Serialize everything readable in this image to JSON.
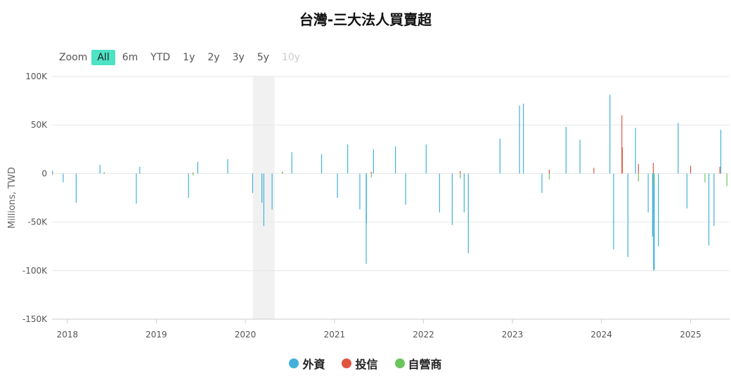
{
  "chart_data": {
    "type": "bar",
    "title": "台灣-三大法人買賣超",
    "ylabel": "Millions, TWD",
    "xlabel": "",
    "ylim": [
      -150000,
      100000
    ],
    "yticks": [
      100000,
      50000,
      0,
      -50000,
      -100000,
      -150000
    ],
    "ytick_labels": [
      "100K",
      "50K",
      "0",
      "-50K",
      "-100K",
      "-150K"
    ],
    "x_range": [
      "2017-10-30",
      "2025-06-10"
    ],
    "xtick_labels": [
      "2018",
      "2019",
      "2020",
      "2021",
      "2022",
      "2023",
      "2024",
      "2025"
    ],
    "xtick_dates": [
      "2018-01-01",
      "2019-01-01",
      "2020-01-01",
      "2021-01-01",
      "2022-01-01",
      "2023-01-01",
      "2024-01-01",
      "2025-01-01"
    ],
    "grid": true,
    "legend_position": "bottom-center",
    "highlight_band": [
      "2020-02-01",
      "2020-04-30"
    ],
    "series": [
      {
        "name": "外資",
        "color": "#42b0da",
        "values": [
          [
            "2017-11-01",
            3000
          ],
          [
            "2017-12-15",
            -9000
          ],
          [
            "2018-02-06",
            -30000
          ],
          [
            "2018-05-15",
            9000
          ],
          [
            "2018-10-11",
            -31000
          ],
          [
            "2018-10-25",
            7000
          ],
          [
            "2019-05-13",
            -25000
          ],
          [
            "2019-06-20",
            12000
          ],
          [
            "2019-10-21",
            15000
          ],
          [
            "2020-01-31",
            -20000
          ],
          [
            "2020-03-09",
            -30000
          ],
          [
            "2020-03-17",
            -54000
          ],
          [
            "2020-04-20",
            -37000
          ],
          [
            "2020-07-10",
            22000
          ],
          [
            "2020-11-09",
            20000
          ],
          [
            "2021-01-13",
            -25000
          ],
          [
            "2021-02-24",
            30000
          ],
          [
            "2021-04-15",
            -37000
          ],
          [
            "2021-05-11",
            -93000
          ],
          [
            "2021-05-12",
            -51000
          ],
          [
            "2021-06-10",
            25000
          ],
          [
            "2021-09-08",
            28000
          ],
          [
            "2021-10-20",
            -32000
          ],
          [
            "2022-01-12",
            30000
          ],
          [
            "2022-03-08",
            -40000
          ],
          [
            "2022-04-29",
            -53000
          ],
          [
            "2022-06-17",
            -40000
          ],
          [
            "2022-07-04",
            -82000
          ],
          [
            "2022-11-11",
            36000
          ],
          [
            "2023-01-30",
            70000
          ],
          [
            "2023-02-15",
            72000
          ],
          [
            "2023-05-02",
            -20000
          ],
          [
            "2023-08-09",
            48000
          ],
          [
            "2023-10-05",
            35000
          ],
          [
            "2024-02-05",
            81000
          ],
          [
            "2024-02-20",
            -78000
          ],
          [
            "2024-04-19",
            -86000
          ],
          [
            "2024-05-20",
            47000
          ],
          [
            "2024-07-11",
            -40000
          ],
          [
            "2024-07-29",
            -65000
          ],
          [
            "2024-08-02",
            -100000
          ],
          [
            "2024-08-05",
            -99000
          ],
          [
            "2024-08-22",
            -75000
          ],
          [
            "2024-11-11",
            52000
          ],
          [
            "2024-12-17",
            -36000
          ],
          [
            "2025-03-17",
            -74000
          ],
          [
            "2025-04-07",
            -54000
          ],
          [
            "2025-05-05",
            45000
          ]
        ]
      },
      {
        "name": "投信",
        "color": "#e2543f",
        "values": [
          [
            "2017-11-01",
            500
          ],
          [
            "2018-06-01",
            800
          ],
          [
            "2019-06-01",
            1000
          ],
          [
            "2020-06-01",
            1500
          ],
          [
            "2021-06-01",
            2000
          ],
          [
            "2022-06-01",
            2500
          ],
          [
            "2023-06-01",
            4000
          ],
          [
            "2023-12-01",
            6000
          ],
          [
            "2024-03-25",
            60000
          ],
          [
            "2024-03-27",
            27000
          ],
          [
            "2024-06-01",
            10000
          ],
          [
            "2024-08-01",
            11000
          ],
          [
            "2025-01-01",
            8000
          ],
          [
            "2025-05-01",
            7000
          ]
        ]
      },
      {
        "name": "自營商",
        "color": "#6ac65c",
        "values": [
          [
            "2017-11-01",
            -1000
          ],
          [
            "2018-06-01",
            1500
          ],
          [
            "2019-06-01",
            -2000
          ],
          [
            "2020-06-01",
            2000
          ],
          [
            "2021-06-01",
            -4000
          ],
          [
            "2022-06-01",
            -5000
          ],
          [
            "2023-06-01",
            -6000
          ],
          [
            "2024-06-01",
            -8000
          ],
          [
            "2024-08-05",
            -12000
          ],
          [
            "2025-03-01",
            -9000
          ],
          [
            "2025-05-30",
            -13000
          ]
        ]
      }
    ]
  },
  "zoom": {
    "label": "Zoom",
    "buttons": [
      {
        "label": "All",
        "state": "active"
      },
      {
        "label": "6m",
        "state": "normal"
      },
      {
        "label": "YTD",
        "state": "normal"
      },
      {
        "label": "1y",
        "state": "normal"
      },
      {
        "label": "2y",
        "state": "normal"
      },
      {
        "label": "3y",
        "state": "normal"
      },
      {
        "label": "5y",
        "state": "normal"
      },
      {
        "label": "10y",
        "state": "disabled"
      }
    ]
  },
  "legend": {
    "items": [
      {
        "label": "外資",
        "color": "#42b0da"
      },
      {
        "label": "投信",
        "color": "#e2543f"
      },
      {
        "label": "自營商",
        "color": "#6ac65c"
      }
    ]
  }
}
